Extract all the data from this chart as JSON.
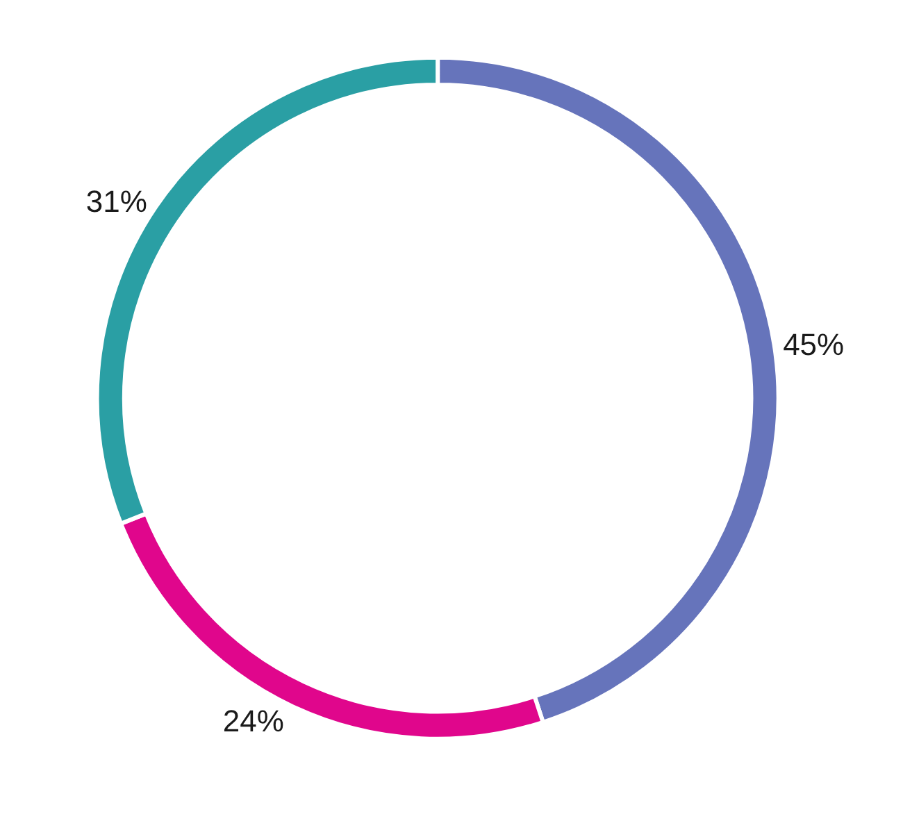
{
  "chart_data": {
    "type": "donut",
    "categories": [
      null,
      null,
      null
    ],
    "values": [
      45,
      24,
      31
    ],
    "colors": [
      "#6674bb",
      "#e0068c",
      "#2a9fa4"
    ],
    "value_labels": [
      "45%",
      "24%",
      "31%"
    ],
    "legend": false
  }
}
